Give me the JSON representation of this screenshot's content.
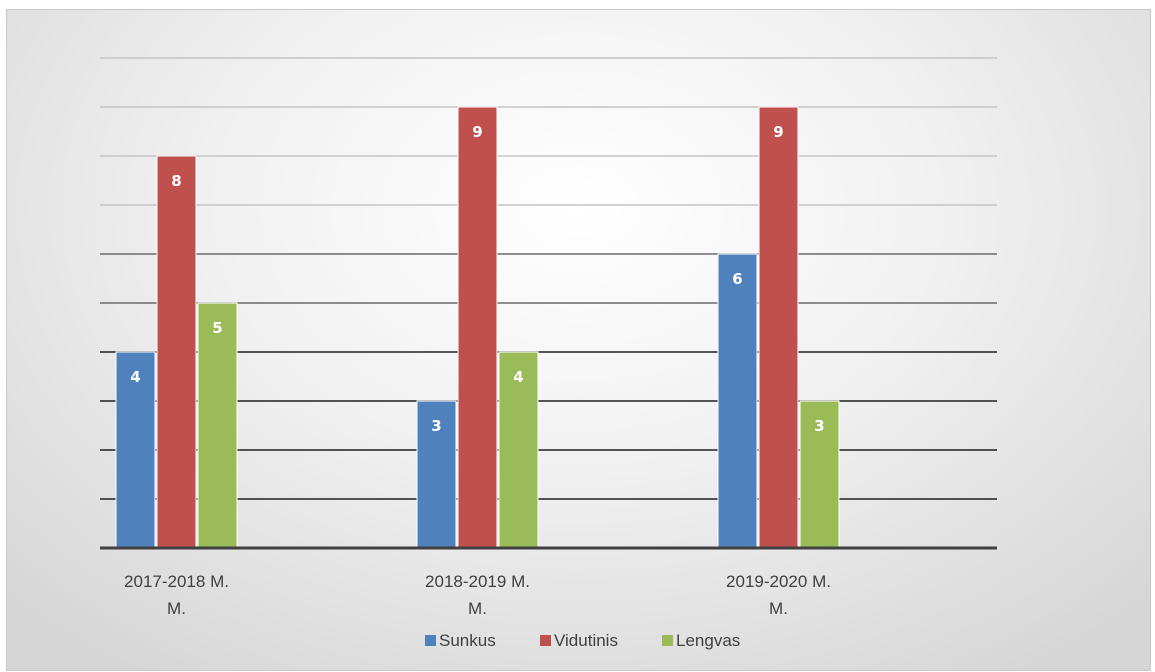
{
  "chart_data": {
    "type": "bar",
    "title": "",
    "xlabel": "",
    "ylabel": "",
    "categories": [
      [
        "2017-2018 M.",
        "M."
      ],
      [
        "2018-2019 M.",
        "M."
      ],
      [
        "2019-2020 M.",
        "M."
      ]
    ],
    "series": [
      {
        "name": "Sunkus",
        "color": "#4f81bd",
        "values": [
          4,
          3,
          6
        ]
      },
      {
        "name": "Vidutinis",
        "color": "#c0504d",
        "values": [
          8,
          9,
          9
        ]
      },
      {
        "name": "Lengvas",
        "color": "#9bbb59",
        "values": [
          5,
          4,
          3
        ]
      }
    ],
    "ylim": [
      0,
      10
    ],
    "y_axis_labels_shown": false,
    "grid": true,
    "data_labels": true,
    "legend_position": "bottom"
  }
}
